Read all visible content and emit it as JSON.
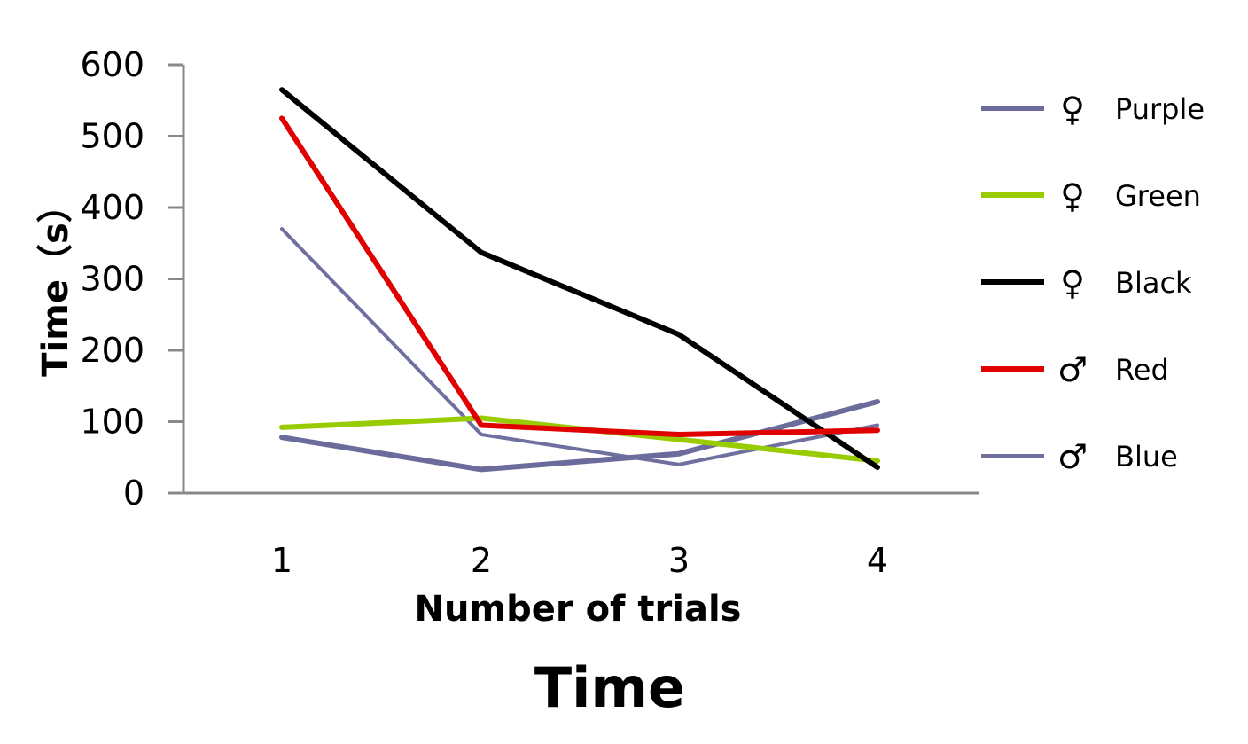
{
  "chart_data": {
    "type": "line",
    "title": "Time",
    "xlabel": "Number of trials",
    "ylabel": "Time（s）",
    "x": [
      1,
      2,
      3,
      4
    ],
    "x_tick_labels": [
      "1",
      "2",
      "3",
      "4"
    ],
    "ylim": [
      0,
      600
    ],
    "y_ticks": [
      0,
      100,
      200,
      300,
      400,
      500,
      600
    ],
    "y_tick_labels": [
      "0",
      "100",
      "200",
      "300",
      "400",
      "500",
      "600"
    ],
    "grid": false,
    "legend_position": "right",
    "series": [
      {
        "name": "Purple",
        "symbol": "♀",
        "color": "#6b6b9c",
        "values": [
          78,
          33,
          55,
          128
        ]
      },
      {
        "name": "Green",
        "symbol": "♀",
        "color": "#99cc00",
        "values": [
          92,
          105,
          75,
          45
        ]
      },
      {
        "name": "Black",
        "symbol": "♀",
        "color": "#000000",
        "values": [
          565,
          337,
          222,
          36
        ]
      },
      {
        "name": "Red",
        "symbol": "♂",
        "color": "#e00000",
        "values": [
          525,
          95,
          82,
          88
        ]
      },
      {
        "name": "Blue",
        "symbol": "♂",
        "color": "#7070a0",
        "values": [
          370,
          82,
          40,
          95
        ]
      }
    ]
  }
}
